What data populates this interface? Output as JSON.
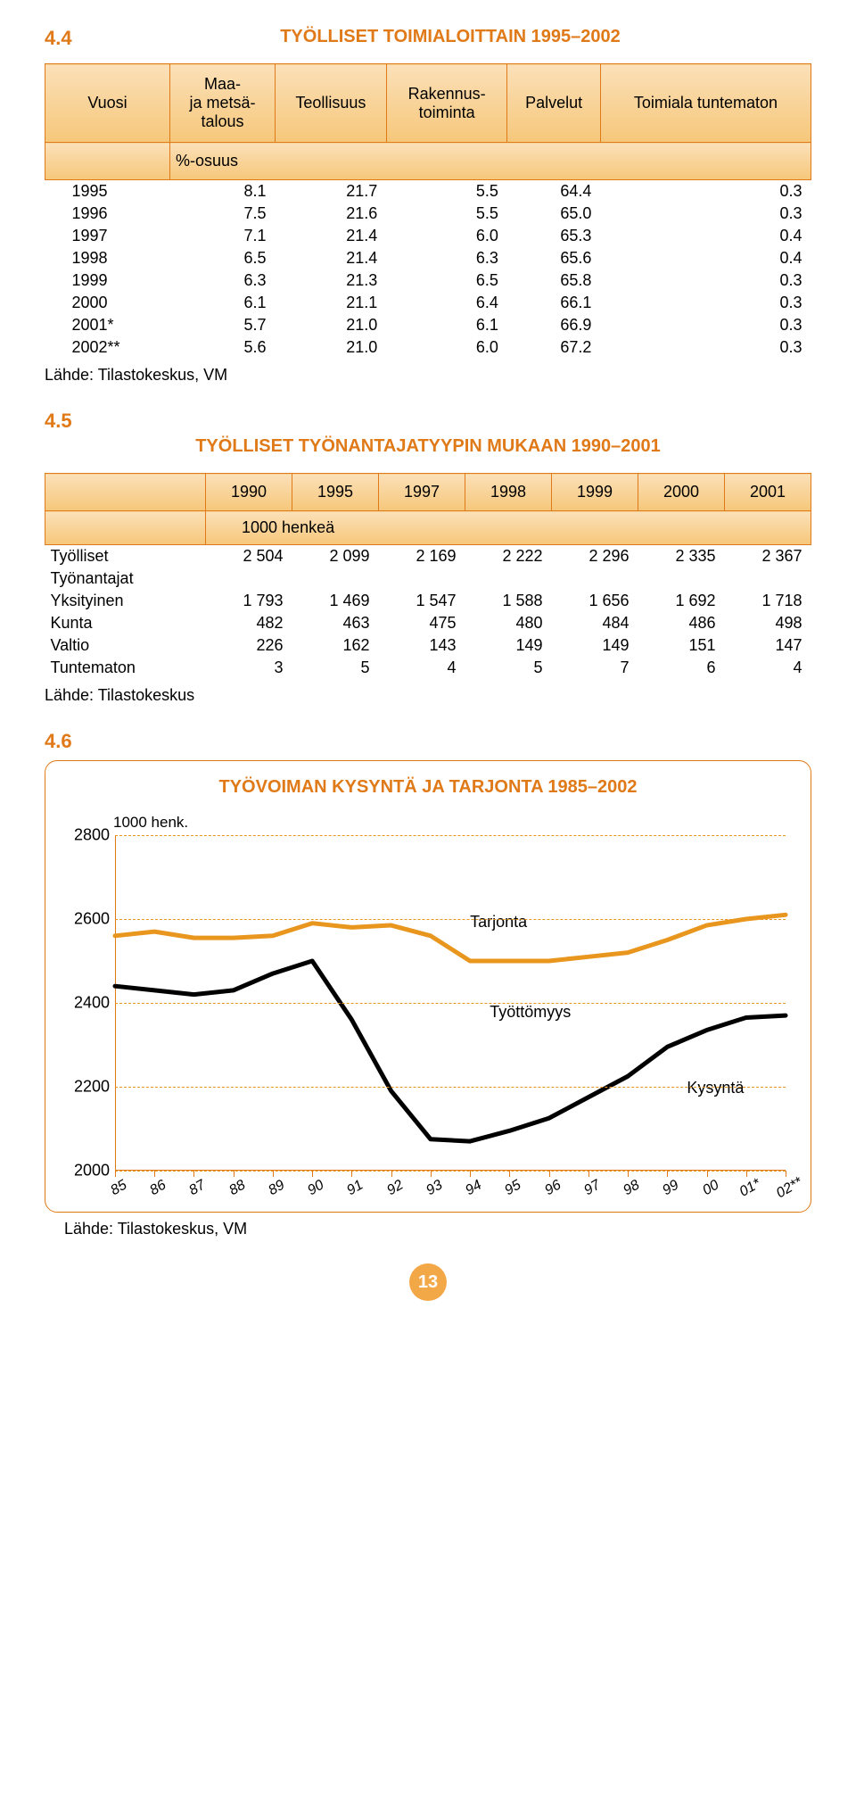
{
  "section44": {
    "number": "4.4",
    "title": "TYÖLLISET TOIMIALOITTAIN 1995–2002",
    "columns": [
      "Vuosi",
      "Maa- ja metsä-talous",
      "Teollisuus",
      "Rakennus-toiminta",
      "Palvelut",
      "Toimiala tuntematon"
    ],
    "subhead": "%-osuus",
    "rows": [
      {
        "year": "1995",
        "cells": [
          "8.1",
          "21.7",
          "5.5",
          "64.4",
          "0.3"
        ]
      },
      {
        "year": "1996",
        "cells": [
          "7.5",
          "21.6",
          "5.5",
          "65.0",
          "0.3"
        ]
      },
      {
        "year": "1997",
        "cells": [
          "7.1",
          "21.4",
          "6.0",
          "65.3",
          "0.4"
        ]
      },
      {
        "year": "1998",
        "cells": [
          "6.5",
          "21.4",
          "6.3",
          "65.6",
          "0.4"
        ]
      },
      {
        "year": "1999",
        "cells": [
          "6.3",
          "21.3",
          "6.5",
          "65.8",
          "0.3"
        ]
      },
      {
        "year": "2000",
        "cells": [
          "6.1",
          "21.1",
          "6.4",
          "66.1",
          "0.3"
        ]
      },
      {
        "year": "2001*",
        "cells": [
          "5.7",
          "21.0",
          "6.1",
          "66.9",
          "0.3"
        ]
      },
      {
        "year": "2002**",
        "cells": [
          "5.6",
          "21.0",
          "6.0",
          "67.2",
          "0.3"
        ]
      }
    ],
    "source": "Lähde: Tilastokeskus, VM"
  },
  "section45": {
    "number": "4.5",
    "title": "TYÖLLISET TYÖNANTAJATYYPIN MUKAAN 1990–2001",
    "year_columns": [
      "1990",
      "1995",
      "1997",
      "1998",
      "1999",
      "2000",
      "2001"
    ],
    "subhead": "1000 henkeä",
    "rows": [
      {
        "label": "Työlliset",
        "cells": [
          "2 504",
          "2 099",
          "2 169",
          "2 222",
          "2 296",
          "2 335",
          "2 367"
        ]
      },
      {
        "label": "Työnantajat",
        "cells": [
          "",
          "",
          "",
          "",
          "",
          "",
          ""
        ]
      },
      {
        "label": "Yksityinen",
        "cells": [
          "1 793",
          "1 469",
          "1 547",
          "1 588",
          "1 656",
          "1 692",
          "1 718"
        ]
      },
      {
        "label": "Kunta",
        "cells": [
          "482",
          "463",
          "475",
          "480",
          "484",
          "486",
          "498"
        ]
      },
      {
        "label": "Valtio",
        "cells": [
          "226",
          "162",
          "143",
          "149",
          "149",
          "151",
          "147"
        ]
      },
      {
        "label": "Tuntematon",
        "cells": [
          "3",
          "5",
          "4",
          "5",
          "7",
          "6",
          "4"
        ]
      }
    ],
    "source": "Lähde: Tilastokeskus"
  },
  "section46": {
    "number": "4.6",
    "title": "TYÖVOIMAN KYSYNTÄ JA TARJONTA 1985–2002",
    "unit_label": "1000 henk.",
    "y_ticks": [
      2000,
      2200,
      2400,
      2600,
      2800
    ],
    "ylim": [
      2000,
      2800
    ],
    "x_labels": [
      "85",
      "86",
      "87",
      "88",
      "89",
      "90",
      "91",
      "92",
      "93",
      "94",
      "95",
      "96",
      "97",
      "98",
      "99",
      "00",
      "01*",
      "02**"
    ],
    "series": {
      "tarjonta": {
        "label": "Tarjonta",
        "color": "#e8961e",
        "stroke_width": 5,
        "values": [
          2560,
          2570,
          2555,
          2555,
          2560,
          2590,
          2580,
          2585,
          2560,
          2500,
          2500,
          2500,
          2510,
          2520,
          2550,
          2585,
          2600,
          2610
        ]
      },
      "kysynta": {
        "label": "Kysyntä",
        "color": "#000000",
        "stroke_width": 5,
        "values": [
          2440,
          2430,
          2420,
          2430,
          2470,
          2500,
          2360,
          2190,
          2075,
          2070,
          2095,
          2125,
          2175,
          2225,
          2295,
          2335,
          2365,
          2370
        ]
      }
    },
    "labels_on_chart": {
      "tarjonta": "Tarjonta",
      "tyottomyys": "Työttömyys",
      "kysynta": "Kysyntä"
    },
    "grid_color": "#e8961e",
    "background_color": "#ffffff",
    "source": "Lähde: Tilastokeskus, VM"
  },
  "page_number": "13"
}
